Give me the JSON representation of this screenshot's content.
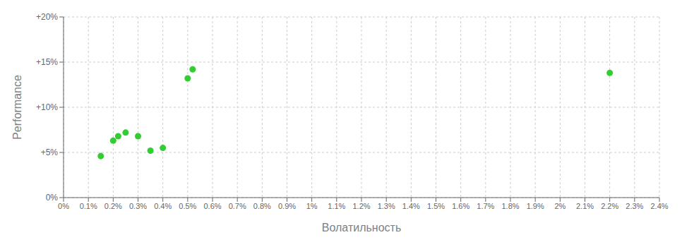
{
  "chart_data": {
    "type": "scatter",
    "xlabel": "Волатильность",
    "ylabel": "Performance",
    "x": [
      0.0015,
      0.002,
      0.0022,
      0.0025,
      0.003,
      0.004,
      0.0035,
      0.005,
      0.0052,
      0.022
    ],
    "values": [
      0.046,
      0.063,
      0.068,
      0.072,
      0.068,
      0.055,
      0.052,
      0.132,
      0.142,
      0.138
    ],
    "color": "#33cc33",
    "xlim": [
      0,
      0.024
    ],
    "ylim": [
      0,
      0.2
    ],
    "xticks": [
      {
        "value": 0.0,
        "label": "0%"
      },
      {
        "value": 0.001,
        "label": "0.1%"
      },
      {
        "value": 0.002,
        "label": "0.2%"
      },
      {
        "value": 0.003,
        "label": "0.3%"
      },
      {
        "value": 0.004,
        "label": "0.4%"
      },
      {
        "value": 0.005,
        "label": "0.5%"
      },
      {
        "value": 0.006,
        "label": "0.6%"
      },
      {
        "value": 0.007,
        "label": "0.7%"
      },
      {
        "value": 0.008,
        "label": "0.8%"
      },
      {
        "value": 0.009,
        "label": "0.9%"
      },
      {
        "value": 0.01,
        "label": "1%"
      },
      {
        "value": 0.011,
        "label": "1.1%"
      },
      {
        "value": 0.012,
        "label": "1.2%"
      },
      {
        "value": 0.013,
        "label": "1.3%"
      },
      {
        "value": 0.014,
        "label": "1.4%"
      },
      {
        "value": 0.015,
        "label": "1.5%"
      },
      {
        "value": 0.016,
        "label": "1.6%"
      },
      {
        "value": 0.017,
        "label": "1.7%"
      },
      {
        "value": 0.018,
        "label": "1.8%"
      },
      {
        "value": 0.019,
        "label": "1.9%"
      },
      {
        "value": 0.02,
        "label": "2%"
      },
      {
        "value": 0.021,
        "label": "2.1%"
      },
      {
        "value": 0.022,
        "label": "2.2%"
      },
      {
        "value": 0.023,
        "label": "2.3%"
      },
      {
        "value": 0.024,
        "label": "2.4%"
      }
    ],
    "yticks": [
      {
        "value": 0.0,
        "label": "0%"
      },
      {
        "value": 0.05,
        "label": "+5%"
      },
      {
        "value": 0.1,
        "label": "+10%"
      },
      {
        "value": 0.15,
        "label": "+15%"
      },
      {
        "value": 0.2,
        "label": "+20%"
      }
    ],
    "grid": true
  }
}
